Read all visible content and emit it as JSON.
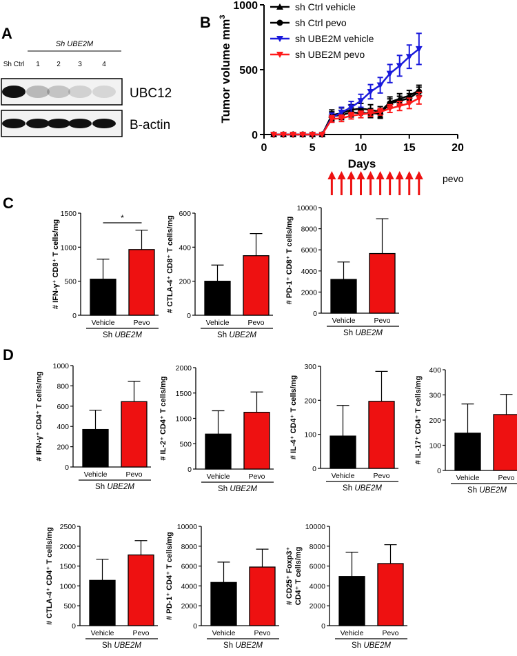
{
  "panels": {
    "a": "A",
    "b": "B",
    "c": "C",
    "d": "D"
  },
  "colors": {
    "black": "#000000",
    "red": "#ee1111",
    "blue": "#1a1adc",
    "curve_red": "#ff1a1a"
  },
  "western_blot": {
    "header": "Sh UBE2M",
    "lanes": [
      "Sh Ctrl",
      "1",
      "2",
      "3",
      "4"
    ],
    "bands": [
      {
        "name": "UBC12",
        "intensities": [
          1.0,
          0.25,
          0.2,
          0.15,
          0.12
        ]
      },
      {
        "name": "B-actin",
        "intensities": [
          1.0,
          1.0,
          1.0,
          1.0,
          1.0
        ]
      }
    ]
  },
  "tumor_curve": {
    "xlabel": "Days",
    "ylabel": "Tumor volume mm",
    "ylabel_sup": "3",
    "treatment_label": "pevo",
    "treatment_days": [
      7,
      8,
      9,
      10,
      11,
      12,
      13,
      14,
      15,
      16
    ]
  },
  "group_label": {
    "sh": "Sh",
    "gene": "UBE2M"
  },
  "chart_data": [
    {
      "id": "B",
      "type": "line",
      "title": "",
      "xlabel": "Days",
      "ylabel": "Tumor volume mm3",
      "xlim": [
        0,
        20
      ],
      "ylim": [
        0,
        1000
      ],
      "xticks": [
        0,
        5,
        10,
        15,
        20
      ],
      "yticks": [
        0,
        500,
        1000
      ],
      "x": [
        1,
        2,
        3,
        4,
        5,
        6,
        7,
        8,
        9,
        10,
        11,
        12,
        13,
        14,
        15,
        16
      ],
      "series": [
        {
          "name": "sh Ctrl vehicle",
          "marker": "triangle-up",
          "color": "#000000",
          "values": [
            0,
            0,
            0,
            0,
            0,
            0,
            150,
            165,
            190,
            200,
            190,
            175,
            250,
            275,
            300,
            340
          ],
          "errors": [
            0,
            0,
            0,
            0,
            0,
            0,
            40,
            40,
            40,
            40,
            40,
            40,
            40,
            40,
            40,
            40
          ]
        },
        {
          "name": "sh Ctrl pevo",
          "marker": "circle",
          "color": "#000000",
          "values": [
            0,
            0,
            0,
            0,
            0,
            0,
            140,
            150,
            170,
            165,
            165,
            160,
            240,
            260,
            280,
            330
          ],
          "errors": [
            0,
            0,
            0,
            0,
            0,
            0,
            35,
            35,
            35,
            35,
            35,
            35,
            35,
            35,
            35,
            35
          ]
        },
        {
          "name": "sh UBE2M vehicle",
          "marker": "triangle-down",
          "color": "#1a1adc",
          "values": [
            0,
            0,
            0,
            0,
            0,
            0,
            130,
            170,
            210,
            260,
            330,
            380,
            470,
            530,
            600,
            660
          ],
          "errors": [
            0,
            0,
            0,
            0,
            0,
            0,
            35,
            40,
            45,
            50,
            55,
            60,
            70,
            80,
            90,
            120
          ]
        },
        {
          "name": "sh UBE2M pevo",
          "marker": "triangle-down",
          "color": "#ff1a1a",
          "values": [
            0,
            0,
            0,
            0,
            0,
            0,
            120,
            125,
            145,
            155,
            165,
            175,
            200,
            220,
            240,
            280
          ],
          "errors": [
            0,
            0,
            0,
            0,
            0,
            0,
            25,
            25,
            25,
            25,
            25,
            25,
            30,
            35,
            40,
            45
          ]
        }
      ]
    },
    {
      "id": "C1",
      "type": "bar",
      "ylabel": "# IFN-γ⁺ CD8⁺ T cells/mg",
      "categories": [
        "Vehicle",
        "Pevo"
      ],
      "values": [
        530,
        965
      ],
      "errors": [
        295,
        285
      ],
      "ylim": [
        0,
        1500
      ],
      "yticks": [
        0,
        500,
        1000,
        1500
      ],
      "significance": "*"
    },
    {
      "id": "C2",
      "type": "bar",
      "ylabel": "# CTLA-4⁺ CD8⁺ T cells/mg",
      "categories": [
        "Vehicle",
        "Pevo"
      ],
      "values": [
        200,
        350
      ],
      "errors": [
        95,
        130
      ],
      "ylim": [
        0,
        600
      ],
      "yticks": [
        0,
        200,
        400,
        600
      ]
    },
    {
      "id": "C3",
      "type": "bar",
      "ylabel": "# PD-1⁺ CD8⁺ T cells/mg",
      "categories": [
        "Vehicle",
        "Pevo"
      ],
      "values": [
        3200,
        5650
      ],
      "errors": [
        1650,
        3300
      ],
      "ylim": [
        0,
        10000
      ],
      "yticks": [
        0,
        2000,
        4000,
        6000,
        8000,
        10000
      ]
    },
    {
      "id": "D1",
      "type": "bar",
      "ylabel": "# IFN-γ⁺ CD4⁺ T cells/mg",
      "categories": [
        "Vehicle",
        "Pevo"
      ],
      "values": [
        370,
        645
      ],
      "errors": [
        190,
        200
      ],
      "ylim": [
        0,
        1000
      ],
      "yticks": [
        0,
        200,
        400,
        600,
        800,
        1000
      ]
    },
    {
      "id": "D2",
      "type": "bar",
      "ylabel": "# IL-2⁺ CD4⁺ T cells/mg",
      "categories": [
        "Vehicle",
        "Pevo"
      ],
      "values": [
        690,
        1120
      ],
      "errors": [
        460,
        400
      ],
      "ylim": [
        0,
        2000
      ],
      "yticks": [
        0,
        500,
        1000,
        1500,
        2000
      ]
    },
    {
      "id": "D3",
      "type": "bar",
      "ylabel": "# IL-4⁺ CD4⁺ T cells/mg",
      "categories": [
        "Vehicle",
        "Pevo"
      ],
      "values": [
        95,
        197
      ],
      "errors": [
        90,
        88
      ],
      "ylim": [
        0,
        300
      ],
      "yticks": [
        0,
        100,
        200,
        300
      ]
    },
    {
      "id": "D4",
      "type": "bar",
      "ylabel": "# IL-17⁺ CD4⁺ T cells/mg",
      "categories": [
        "Vehicle",
        "Pevo"
      ],
      "values": [
        148,
        222
      ],
      "errors": [
        116,
        80
      ],
      "ylim": [
        0,
        400
      ],
      "yticks": [
        0,
        100,
        200,
        300,
        400
      ]
    },
    {
      "id": "D5",
      "type": "bar",
      "ylabel": "# CTLA-4⁺ CD4⁺ T cells/mg",
      "categories": [
        "Vehicle",
        "Pevo"
      ],
      "values": [
        1140,
        1780
      ],
      "errors": [
        530,
        360
      ],
      "ylim": [
        0,
        2500
      ],
      "yticks": [
        0,
        500,
        1000,
        1500,
        2000,
        2500
      ]
    },
    {
      "id": "D6",
      "type": "bar",
      "ylabel": "# PD-1⁺ CD4⁺ T cells/mg",
      "categories": [
        "Vehicle",
        "Pevo"
      ],
      "values": [
        4350,
        5900
      ],
      "errors": [
        2050,
        1800
      ],
      "ylim": [
        0,
        10000
      ],
      "yticks": [
        0,
        2000,
        4000,
        6000,
        8000,
        10000
      ]
    },
    {
      "id": "D7",
      "type": "bar",
      "ylabel": "# CD25⁺ Foxp3⁺",
      "ylabel2": "CD4⁺ T cells/mg",
      "categories": [
        "Vehicle",
        "Pevo"
      ],
      "values": [
        4950,
        6250
      ],
      "errors": [
        2450,
        1900
      ],
      "ylim": [
        0,
        10000
      ],
      "yticks": [
        0,
        2000,
        4000,
        6000,
        8000,
        10000
      ]
    }
  ]
}
